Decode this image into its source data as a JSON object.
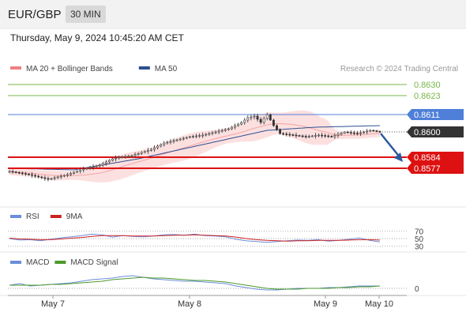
{
  "header": {
    "symbol": "EUR/GBP",
    "interval": "30 MIN",
    "timestamp": "Thursday, May 9, 2024 10:45:20 AM CET"
  },
  "colors": {
    "resistance": "#7ab648",
    "pivot": "#4f7fd8",
    "support": "#dd1111",
    "current": "#333333",
    "ma20_band": "#f5a3a3",
    "ma50": "#2e4f90",
    "rsi": "#6b8ddb",
    "rsi_ma": "#cc2222",
    "macd": "#6b8ddb",
    "macd_signal": "#4a9a2a",
    "arrow": "#2a5a9e",
    "candle_up": "#ffffff",
    "candle_down": "#333333"
  },
  "chart_data": [
    {
      "type": "candlestick",
      "panel": "price",
      "legend": [
        {
          "name": "MA 20 + Bollinger Bands",
          "color": "#f08080"
        },
        {
          "name": "MA 50",
          "color": "#2e4f90"
        }
      ],
      "legend_position": "top-left",
      "source": "Research © 2024 Trading Central",
      "x_ticks": [
        "May 7",
        "May 8",
        "May 9",
        "May 10"
      ],
      "ylim": [
        0.85675,
        0.86345
      ],
      "levels": [
        {
          "value": 0.863,
          "label": "0.8630",
          "kind": "resistance"
        },
        {
          "value": 0.8623,
          "label": "0.8623",
          "kind": "resistance"
        },
        {
          "value": 0.8611,
          "label": "0.8611",
          "kind": "pivot"
        },
        {
          "value": 0.86,
          "label": "0.8600",
          "kind": "current"
        },
        {
          "value": 0.8584,
          "label": "0.8584",
          "kind": "support"
        },
        {
          "value": 0.8577,
          "label": "0.8577",
          "kind": "support"
        }
      ],
      "price_path": [
        [
          0,
          0.8575
        ],
        [
          6,
          0.8573
        ],
        [
          12,
          0.857
        ],
        [
          18,
          0.8573
        ],
        [
          22,
          0.8576
        ],
        [
          26,
          0.8578
        ],
        [
          28,
          0.8579
        ],
        [
          32,
          0.8583
        ],
        [
          34,
          0.8584
        ],
        [
          38,
          0.8585
        ],
        [
          44,
          0.8589
        ],
        [
          48,
          0.8593
        ],
        [
          52,
          0.8595
        ],
        [
          56,
          0.8597
        ],
        [
          60,
          0.8598
        ],
        [
          64,
          0.86
        ],
        [
          68,
          0.8602
        ],
        [
          72,
          0.8606
        ],
        [
          74,
          0.8609
        ],
        [
          76,
          0.861
        ],
        [
          78,
          0.8606
        ],
        [
          80,
          0.8611
        ],
        [
          82,
          0.8604
        ],
        [
          84,
          0.8599
        ],
        [
          88,
          0.8598
        ],
        [
          92,
          0.8597
        ],
        [
          96,
          0.8598
        ],
        [
          100,
          0.8597
        ],
        [
          104,
          0.86
        ],
        [
          108,
          0.8599
        ],
        [
          110,
          0.86
        ],
        [
          112,
          0.8601
        ],
        [
          115,
          0.86
        ]
      ],
      "ma50_path": [
        [
          0,
          0.8577
        ],
        [
          20,
          0.8576
        ],
        [
          40,
          0.8583
        ],
        [
          60,
          0.8592
        ],
        [
          80,
          0.8601
        ],
        [
          95,
          0.8603
        ],
        [
          115,
          0.8604
        ]
      ],
      "forecast_arrow": {
        "from": 0.8599,
        "to": 0.8582
      }
    },
    {
      "type": "line",
      "panel": "rsi",
      "legend": [
        {
          "name": "RSI",
          "color": "#6b8ddb"
        },
        {
          "name": "9MA",
          "color": "#cc2222"
        }
      ],
      "y_ticks": [
        "70",
        "50",
        "30"
      ],
      "ylim": [
        20,
        80
      ],
      "series": [
        {
          "name": "RSI",
          "values": [
            50,
            46,
            47,
            44,
            48,
            52,
            55,
            58,
            62,
            60,
            54,
            58,
            56,
            55,
            57,
            60,
            61,
            59,
            62,
            58,
            57,
            55,
            48,
            44,
            42,
            40,
            42,
            44,
            46,
            45,
            47,
            43,
            45,
            48,
            52,
            45,
            41
          ]
        },
        {
          "name": "9MA",
          "values": [
            51,
            49,
            48,
            47,
            47,
            49,
            51,
            53,
            56,
            58,
            58,
            58,
            57,
            57,
            57,
            58,
            59,
            59,
            60,
            59,
            58,
            57,
            54,
            50,
            47,
            45,
            44,
            43,
            44,
            44,
            45,
            45,
            45,
            46,
            47,
            47,
            46
          ]
        }
      ]
    },
    {
      "type": "line",
      "panel": "macd",
      "legend": [
        {
          "name": "MACD",
          "color": "#6b8ddb"
        },
        {
          "name": "MACD Signal",
          "color": "#4a9a2a"
        }
      ],
      "y_ticks": [
        "0"
      ],
      "ylim": [
        -0.0006,
        0.0019
      ],
      "series": [
        {
          "name": "MACD",
          "values": [
            0.0004,
            0.0006,
            0.0003,
            0.0004,
            0.0005,
            0.0006,
            0.0007,
            0.0009,
            0.0011,
            0.0012,
            0.0013,
            0.0015,
            0.0016,
            0.0014,
            0.0012,
            0.0011,
            0.001,
            0.0009,
            0.0009,
            0.0008,
            0.0007,
            0.0006,
            0.0003,
            0.0001,
            -0.0001,
            -0.0002,
            -0.0002,
            -0.0001,
            0.0,
            0.0,
            0.0,
            0.0001,
            0.0001,
            0.0002,
            0.0003,
            0.0003,
            0.0003
          ]
        },
        {
          "name": "MACD Signal",
          "values": [
            0.0004,
            0.0004,
            0.0004,
            0.0004,
            0.0005,
            0.0005,
            0.0006,
            0.0007,
            0.0008,
            0.0009,
            0.0011,
            0.0012,
            0.0013,
            0.0014,
            0.0013,
            0.0013,
            0.0012,
            0.0011,
            0.001,
            0.001,
            0.0009,
            0.0008,
            0.0006,
            0.0004,
            0.0002,
            0.0,
            -0.0001,
            -0.0001,
            -0.0001,
            0.0,
            0.0,
            0.0,
            0.0001,
            0.0001,
            0.0002,
            0.0002,
            0.0003
          ]
        }
      ]
    }
  ]
}
